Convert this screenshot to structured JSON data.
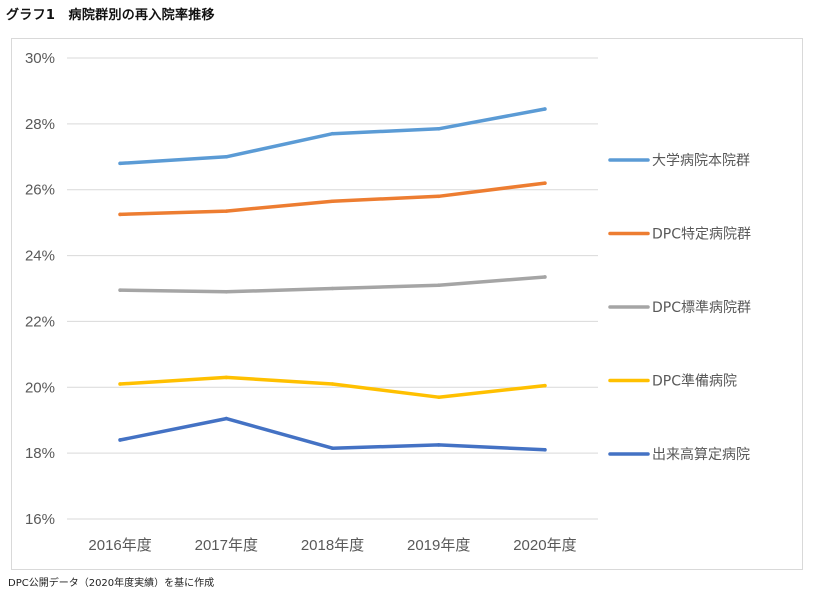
{
  "title": "グラフ1　病院群別の再入院率推移",
  "source_note": "DPC公開データ（2020年度実績）を基に作成",
  "chart_data": {
    "type": "line",
    "title": "グラフ1　病院群別の再入院率推移",
    "xlabel": "",
    "ylabel": "",
    "categories": [
      "2016年度",
      "2017年度",
      "2018年度",
      "2019年度",
      "2020年度"
    ],
    "ylim": [
      16,
      30
    ],
    "yticks": [
      16,
      18,
      20,
      22,
      24,
      26,
      28,
      30
    ],
    "ytick_labels": [
      "16%",
      "18%",
      "20%",
      "22%",
      "24%",
      "26%",
      "28%",
      "30%"
    ],
    "grid": true,
    "legend_position": "right",
    "series": [
      {
        "name": "大学病院本院群",
        "color": "#5b9bd5",
        "values": [
          26.8,
          27.0,
          27.7,
          27.85,
          28.45
        ]
      },
      {
        "name": "DPC特定病院群",
        "color": "#ed7d31",
        "values": [
          25.25,
          25.35,
          25.65,
          25.8,
          26.2
        ]
      },
      {
        "name": "DPC標準病院群",
        "color": "#a5a5a5",
        "values": [
          22.95,
          22.9,
          23.0,
          23.1,
          23.35
        ]
      },
      {
        "name": "DPC準備病院",
        "color": "#ffc000",
        "values": [
          20.1,
          20.3,
          20.1,
          19.7,
          20.05
        ]
      },
      {
        "name": "出来高算定病院",
        "color": "#4472c4",
        "values": [
          18.4,
          19.05,
          18.15,
          18.25,
          18.1
        ]
      }
    ]
  }
}
